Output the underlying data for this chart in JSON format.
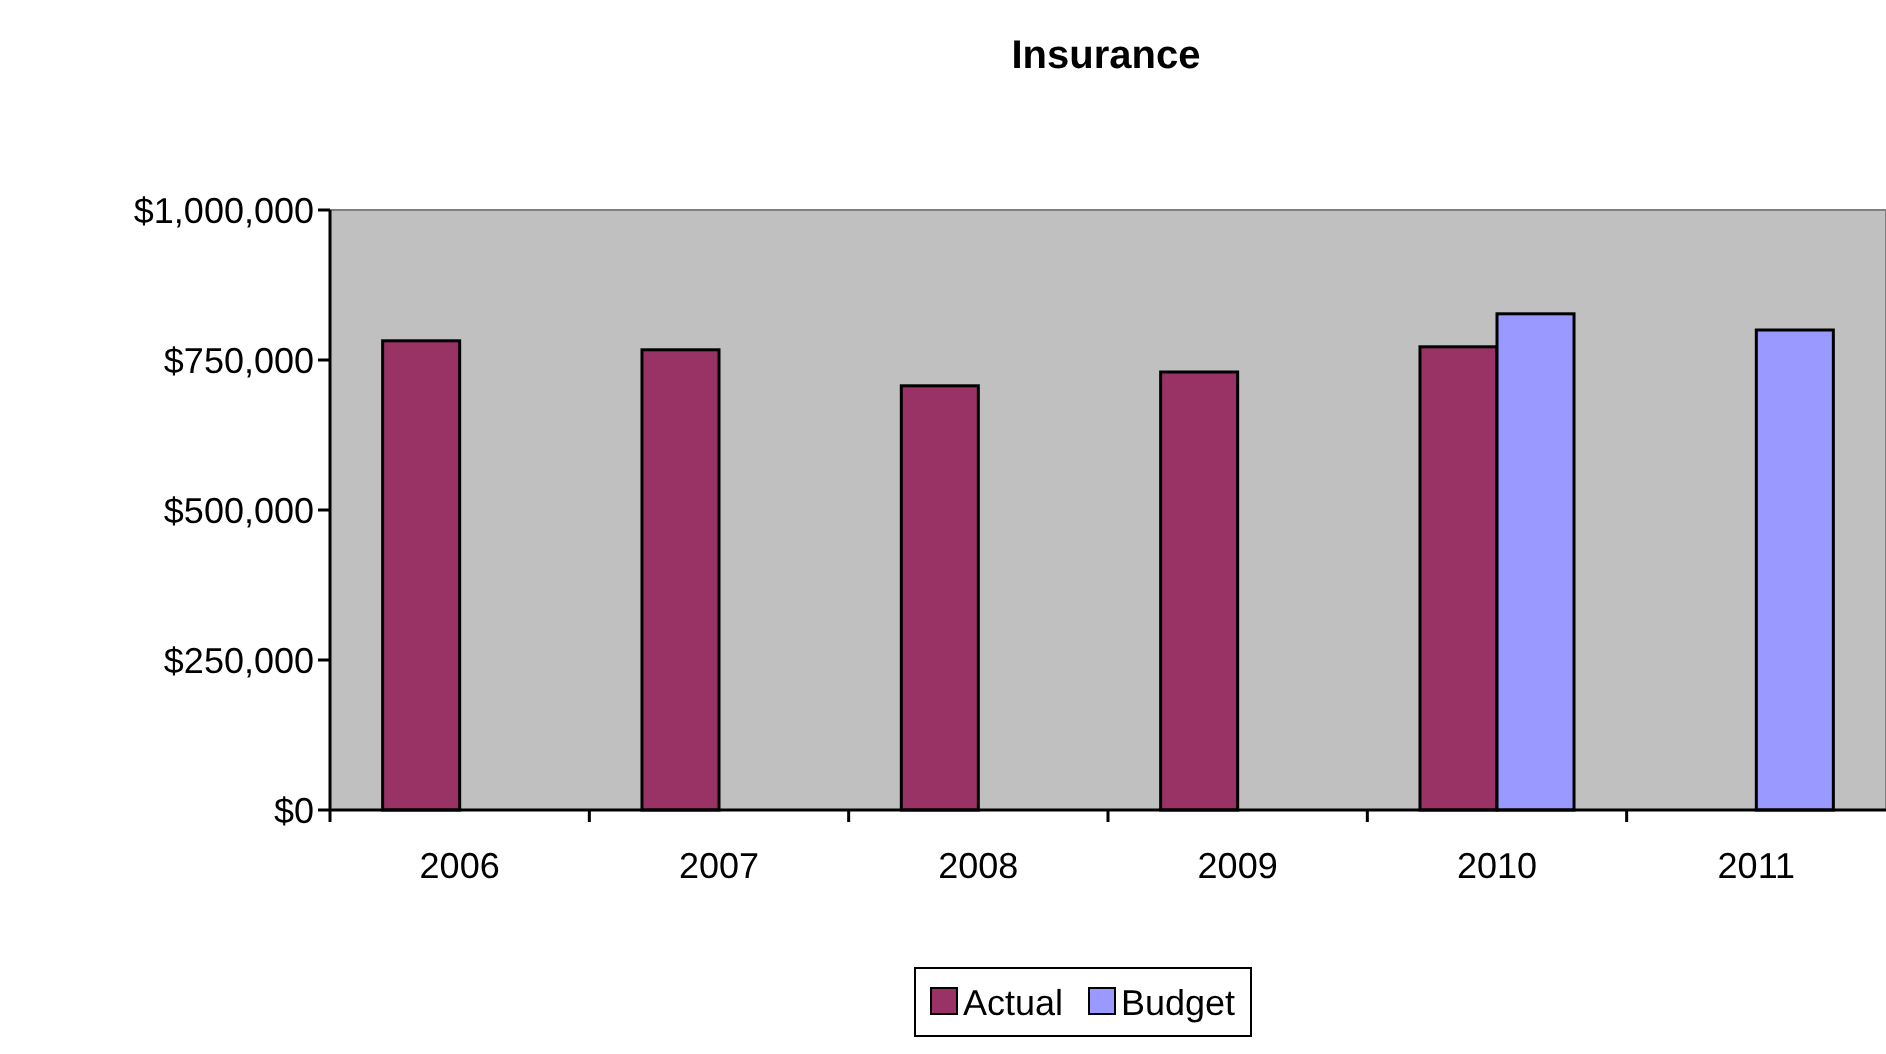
{
  "chart_data": {
    "type": "bar",
    "title": "Insurance",
    "categories": [
      "2006",
      "2007",
      "2008",
      "2009",
      "2010",
      "2011"
    ],
    "series": [
      {
        "name": "Actual",
        "color": "#993366",
        "values": [
          782000,
          767000,
          707000,
          730000,
          772000,
          null
        ]
      },
      {
        "name": "Budget",
        "color": "#9999ff",
        "values": [
          null,
          null,
          null,
          null,
          827000,
          800000
        ]
      }
    ],
    "ylim": [
      0,
      1000000
    ],
    "yticks": [
      {
        "value": 0,
        "label": "$0"
      },
      {
        "value": 250000,
        "label": "$250,000"
      },
      {
        "value": 500000,
        "label": "$500,000"
      },
      {
        "value": 750000,
        "label": "$750,000"
      },
      {
        "value": 1000000,
        "label": "$1,000,000"
      }
    ],
    "grid": false,
    "legend": "bottom"
  }
}
